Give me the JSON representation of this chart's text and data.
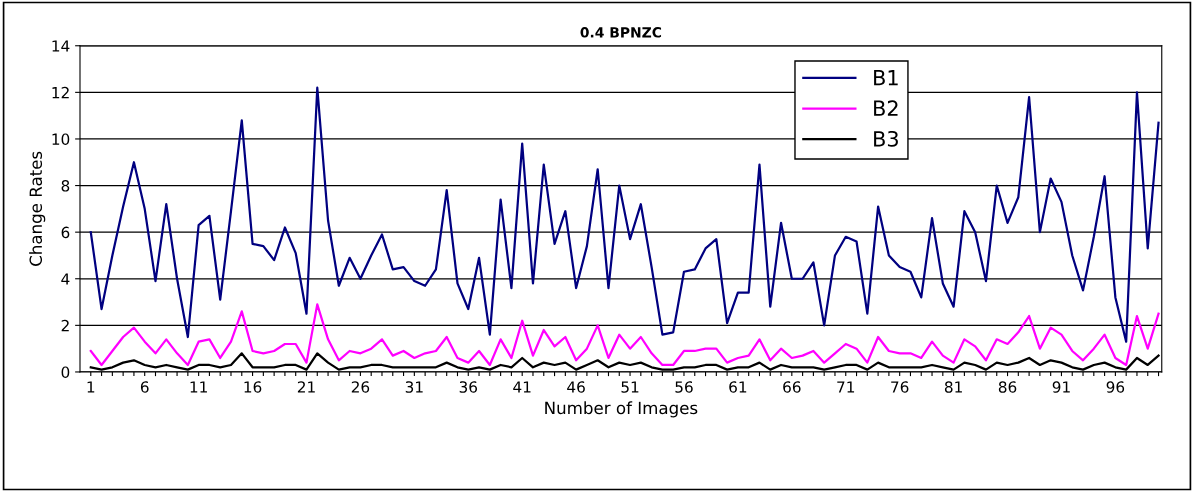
{
  "chart_data": {
    "type": "line",
    "title": "0.4 BPNZC",
    "xlabel": "Number of Images",
    "ylabel": "Change Rates",
    "categories": [
      "1",
      null,
      null,
      null,
      null,
      "6",
      null,
      null,
      null,
      null,
      "11",
      null,
      null,
      null,
      null,
      "16",
      null,
      null,
      null,
      null,
      "21",
      null,
      null,
      null,
      null,
      "26",
      null,
      null,
      null,
      null,
      "31",
      null,
      null,
      null,
      null,
      "36",
      null,
      null,
      null,
      null,
      "41",
      null,
      null,
      null,
      null,
      "46",
      null,
      null,
      null,
      null,
      "51",
      null,
      null,
      null,
      null,
      "56",
      null,
      null,
      null,
      null,
      "61",
      null,
      null,
      null,
      null,
      "66",
      null,
      null,
      null,
      null,
      "71",
      null,
      null,
      null,
      null,
      "76",
      null,
      null,
      null,
      null,
      "81",
      null,
      null,
      null,
      null,
      "86",
      null,
      null,
      null,
      null,
      "91",
      null,
      null,
      null,
      null,
      "96",
      null,
      null,
      null,
      null
    ],
    "series": [
      {
        "name": "B1",
        "color": "#000080",
        "values": [
          6.0,
          2.7,
          5.0,
          7.1,
          9.0,
          7.0,
          3.9,
          7.2,
          4.0,
          1.5,
          6.3,
          6.7,
          3.1,
          6.9,
          10.8,
          5.5,
          5.4,
          4.8,
          6.2,
          5.1,
          2.5,
          12.2,
          6.5,
          3.7,
          4.9,
          4.0,
          5.0,
          5.9,
          4.4,
          4.5,
          3.9,
          3.7,
          4.4,
          7.8,
          3.8,
          2.7,
          4.9,
          1.6,
          7.4,
          3.6,
          9.8,
          3.8,
          8.9,
          5.5,
          6.9,
          3.6,
          5.4,
          8.7,
          3.6,
          8.0,
          5.7,
          7.2,
          4.5,
          1.6,
          1.7,
          4.3,
          4.4,
          5.3,
          5.7,
          2.1,
          3.4,
          3.4,
          8.9,
          2.8,
          6.4,
          4.0,
          4.0,
          4.7,
          2.0,
          5.0,
          5.8,
          5.6,
          2.5,
          7.1,
          5.0,
          4.5,
          4.3,
          3.2,
          6.6,
          3.8,
          2.8,
          6.9,
          6.0,
          3.9,
          8.0,
          6.4,
          7.5,
          11.8,
          6.0,
          8.3,
          7.3,
          5.0,
          3.5,
          5.8,
          8.4,
          3.2,
          1.3,
          12.0,
          5.3,
          10.7
        ]
      },
      {
        "name": "B2",
        "color": "#ff00ff",
        "values": [
          0.9,
          0.3,
          0.9,
          1.5,
          1.9,
          1.3,
          0.8,
          1.4,
          0.8,
          0.3,
          1.3,
          1.4,
          0.6,
          1.3,
          2.6,
          0.9,
          0.8,
          0.9,
          1.2,
          1.2,
          0.4,
          2.9,
          1.4,
          0.5,
          0.9,
          0.8,
          1.0,
          1.4,
          0.7,
          0.9,
          0.6,
          0.8,
          0.9,
          1.5,
          0.6,
          0.4,
          0.9,
          0.3,
          1.4,
          0.6,
          2.2,
          0.7,
          1.8,
          1.1,
          1.5,
          0.5,
          1.0,
          2.0,
          0.6,
          1.6,
          1.0,
          1.5,
          0.8,
          0.3,
          0.3,
          0.9,
          0.9,
          1.0,
          1.0,
          0.4,
          0.6,
          0.7,
          1.4,
          0.5,
          1.0,
          0.6,
          0.7,
          0.9,
          0.4,
          0.8,
          1.2,
          1.0,
          0.4,
          1.5,
          0.9,
          0.8,
          0.8,
          0.6,
          1.3,
          0.7,
          0.4,
          1.4,
          1.1,
          0.5,
          1.4,
          1.2,
          1.7,
          2.4,
          1.0,
          1.9,
          1.6,
          0.9,
          0.5,
          1.0,
          1.6,
          0.6,
          0.3,
          2.4,
          1.0,
          2.5
        ]
      },
      {
        "name": "B3",
        "color": "#000000",
        "values": [
          0.2,
          0.1,
          0.2,
          0.4,
          0.5,
          0.3,
          0.2,
          0.3,
          0.2,
          0.1,
          0.3,
          0.3,
          0.2,
          0.3,
          0.8,
          0.2,
          0.2,
          0.2,
          0.3,
          0.3,
          0.1,
          0.8,
          0.4,
          0.1,
          0.2,
          0.2,
          0.3,
          0.3,
          0.2,
          0.2,
          0.2,
          0.2,
          0.2,
          0.4,
          0.2,
          0.1,
          0.2,
          0.1,
          0.3,
          0.2,
          0.6,
          0.2,
          0.4,
          0.3,
          0.4,
          0.1,
          0.3,
          0.5,
          0.2,
          0.4,
          0.3,
          0.4,
          0.2,
          0.1,
          0.1,
          0.2,
          0.2,
          0.3,
          0.3,
          0.1,
          0.2,
          0.2,
          0.4,
          0.1,
          0.3,
          0.2,
          0.2,
          0.2,
          0.1,
          0.2,
          0.3,
          0.3,
          0.1,
          0.4,
          0.2,
          0.2,
          0.2,
          0.2,
          0.3,
          0.2,
          0.1,
          0.4,
          0.3,
          0.1,
          0.4,
          0.3,
          0.4,
          0.6,
          0.3,
          0.5,
          0.4,
          0.2,
          0.1,
          0.3,
          0.4,
          0.2,
          0.1,
          0.6,
          0.3,
          0.7
        ]
      }
    ],
    "ylim": [
      0,
      14
    ],
    "yticks": [
      0,
      2,
      4,
      6,
      8,
      10,
      12,
      14
    ],
    "grid": "y",
    "legend": "top right",
    "marker": "none",
    "line_style": "solid"
  }
}
